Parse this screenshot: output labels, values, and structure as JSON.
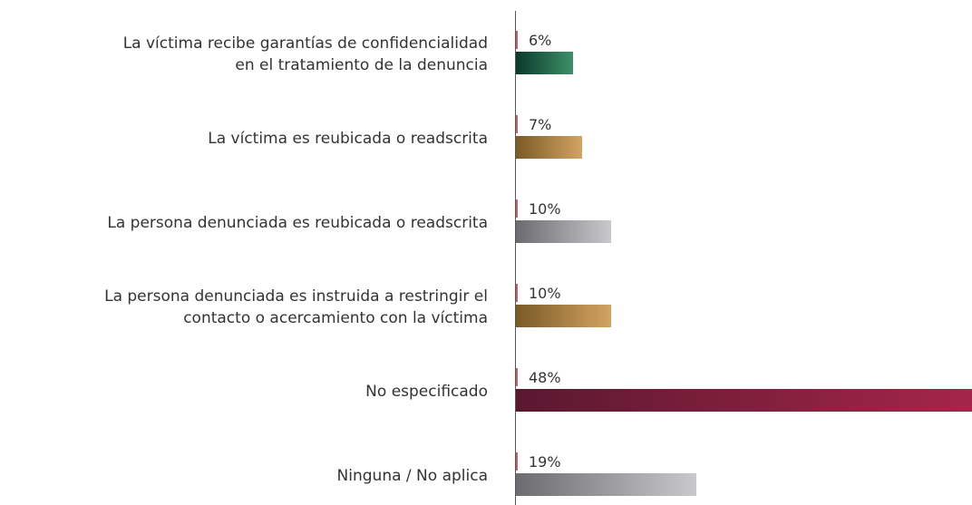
{
  "chart_data": {
    "type": "bar",
    "orientation": "horizontal",
    "categories": [
      "La víctima recibe garantías de confidencialidad\nen el tratamiento de la denuncia",
      "La víctima es reubicada o readscrita",
      "La persona denunciada es reubicada o readscrita",
      "La persona denunciada es instruida a restringir el\ncontacto o acercamiento con la víctima",
      "No especificado",
      "Ninguna / No aplica"
    ],
    "values": [
      6,
      7,
      10,
      10,
      48,
      19
    ],
    "value_labels": [
      "6%",
      "7%",
      "10%",
      "10%",
      "48%",
      "19%"
    ],
    "colors": [
      [
        "#0a3a2c",
        "#3f8f68"
      ],
      [
        "#7b5a26",
        "#d3a463"
      ],
      [
        "#6c6c70",
        "#c9c9cd"
      ],
      [
        "#7b5a26",
        "#d3a463"
      ],
      [
        "#5a1830",
        "#a5254a"
      ],
      [
        "#6c6c70",
        "#c9c9cd"
      ]
    ],
    "tick_color": "#c0606a",
    "axis_color": "#555555"
  }
}
